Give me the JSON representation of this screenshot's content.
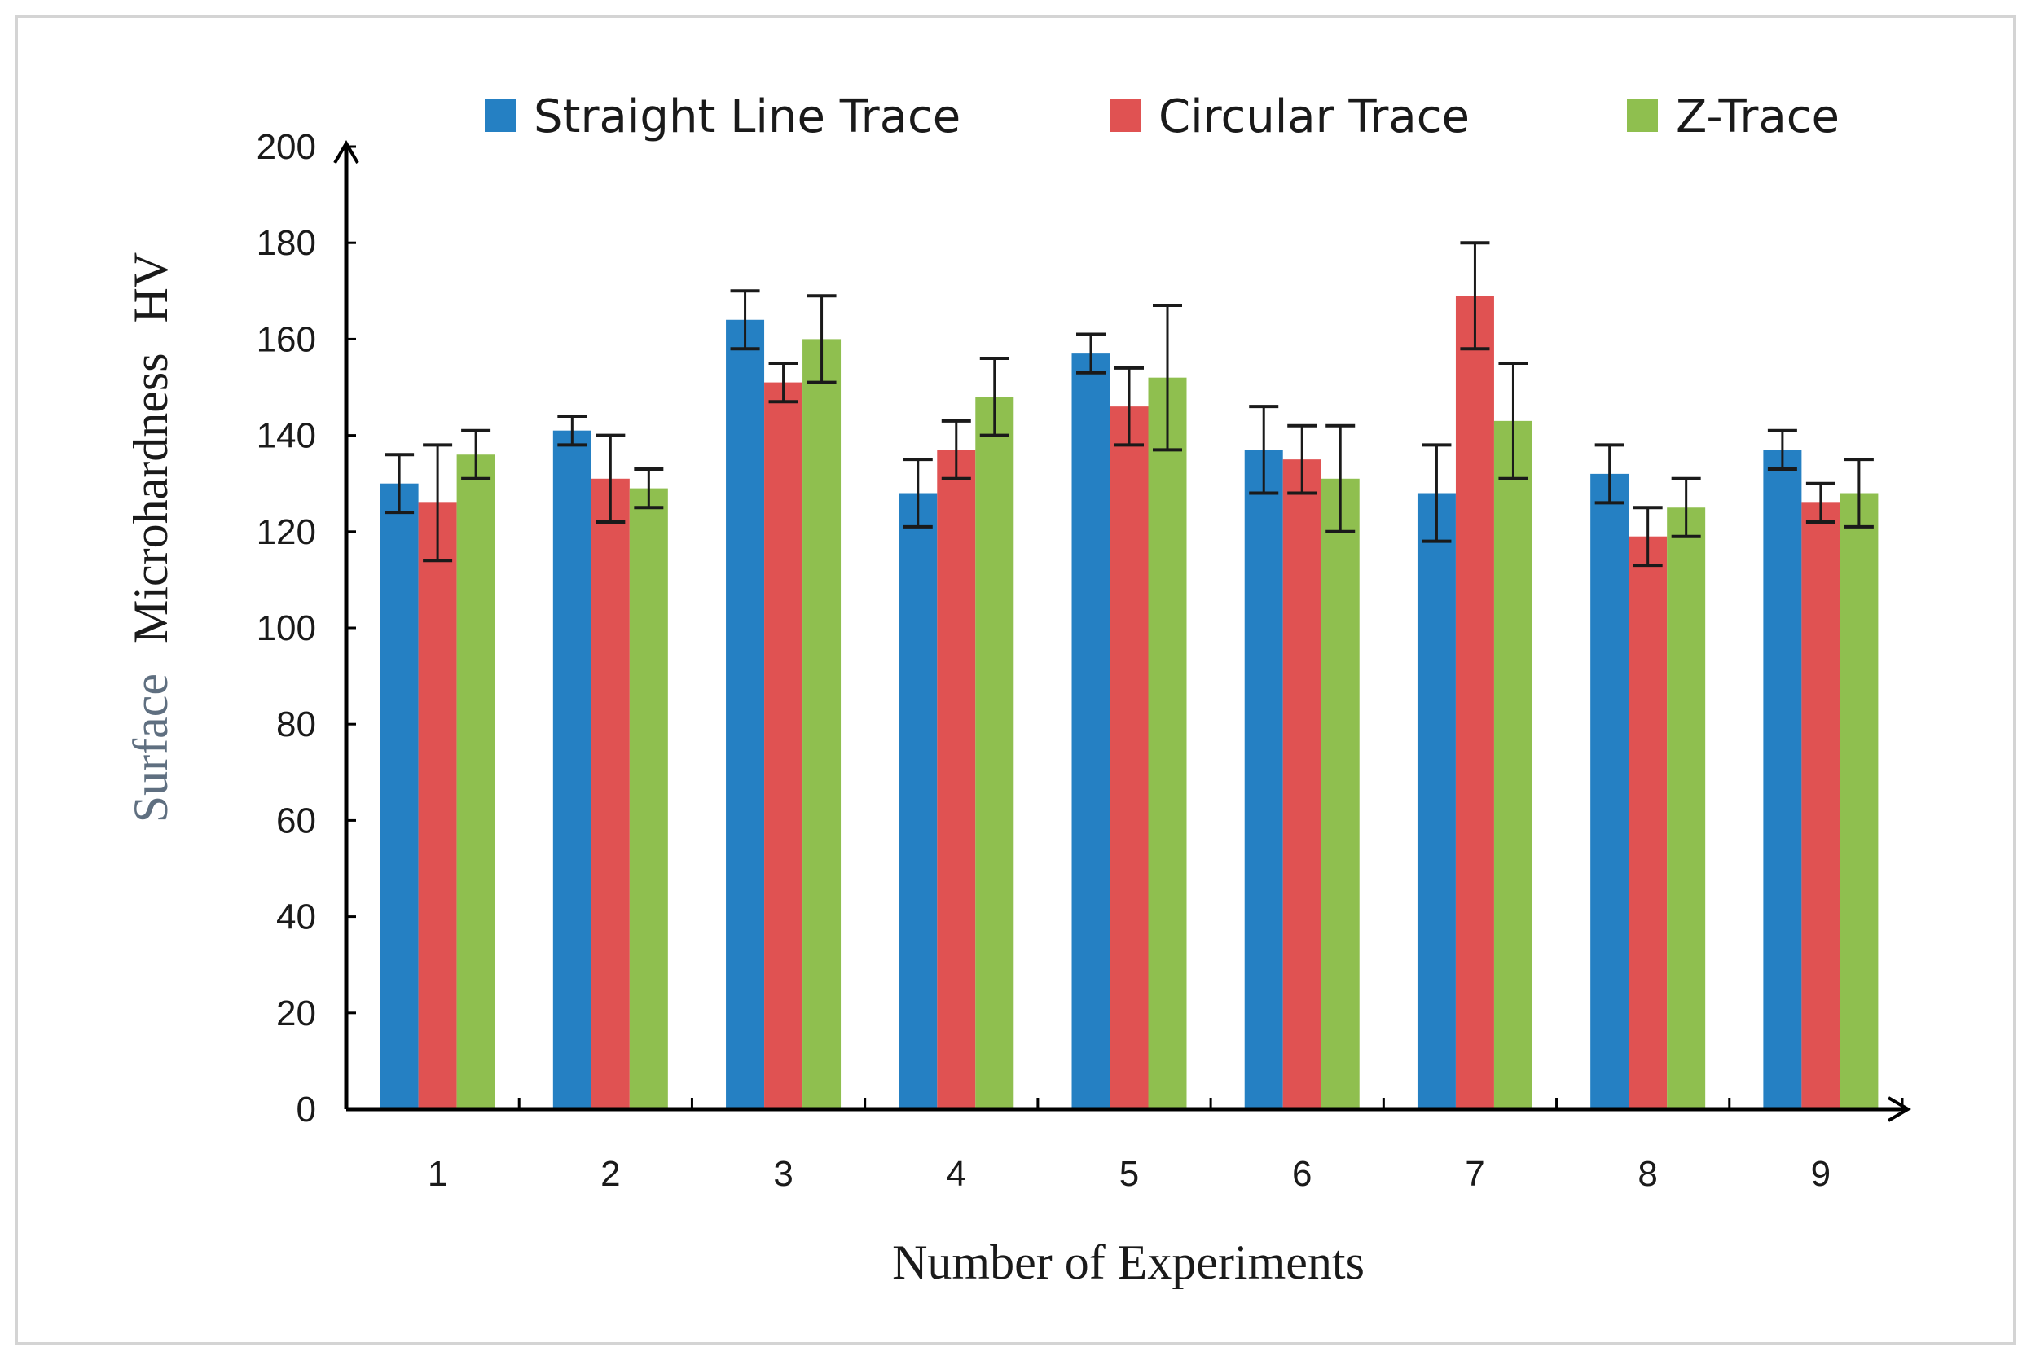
{
  "chart_data": {
    "type": "bar",
    "title": "",
    "xlabel": "Number of Experiments",
    "ylabel_parts": [
      "Surface",
      "Microhardness",
      "HV"
    ],
    "ylim": [
      0,
      200
    ],
    "yticks": [
      0,
      20,
      40,
      60,
      80,
      100,
      120,
      140,
      160,
      180,
      200
    ],
    "categories": [
      "1",
      "2",
      "3",
      "4",
      "5",
      "6",
      "7",
      "8",
      "9"
    ],
    "legend_position": "top",
    "series": [
      {
        "name": "Straight Line Trace",
        "color": "#2580c3",
        "values": [
          130,
          141,
          164,
          128,
          157,
          137,
          128,
          132,
          137
        ],
        "errors": [
          6,
          3,
          6,
          7,
          4,
          9,
          10,
          6,
          4
        ]
      },
      {
        "name": "Circular Trace",
        "color": "#e05252",
        "values": [
          126,
          131,
          151,
          137,
          146,
          135,
          169,
          119,
          126
        ],
        "errors": [
          12,
          9,
          4,
          6,
          8,
          7,
          11,
          6,
          4
        ]
      },
      {
        "name": "Z-Trace",
        "color": "#8fbf4f",
        "values": [
          136,
          129,
          160,
          148,
          152,
          131,
          143,
          125,
          128
        ],
        "errors": [
          5,
          4,
          9,
          8,
          15,
          11,
          12,
          6,
          7
        ]
      }
    ]
  }
}
